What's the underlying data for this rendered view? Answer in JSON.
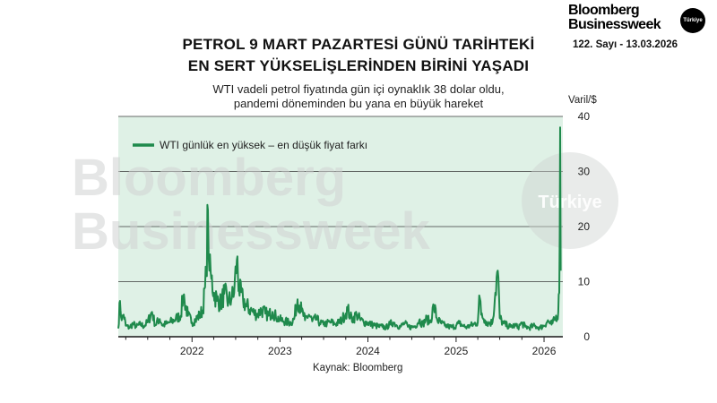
{
  "brand": {
    "line1": "Bloomberg",
    "line2": "Businessweek",
    "badge": "Türkiye",
    "issue": "122. Sayı - 13.03.2026"
  },
  "header": {
    "title_line1": "PETROL 9 MART PAZARTESİ GÜNÜ TARİHTEKİ",
    "title_line2": "EN SERT YÜKSELİŞLERİNDEN BİRİNİ YAŞADI",
    "subtitle_line1": "WTI vadeli petrol fiyatında gün içi oynaklık 38 dolar oldu,",
    "subtitle_line2": "pandemi döneminden bu yana en büyük hareket"
  },
  "watermark": {
    "line1": "Bloomberg",
    "line2": "Businessweek",
    "badge": "Türkiye"
  },
  "source": "Kaynak: Bloomberg",
  "colors": {
    "line": "#1f8a4c",
    "plot_bg": "#dff1e6",
    "grid": "#3a3a3a",
    "text": "#111111"
  },
  "chart_data": {
    "type": "line",
    "title": "PETROL 9 MART PAZARTESİ GÜNÜ TARİHTEKİ EN SERT YÜKSELİŞLERİNDEN BİRİNİ YAŞADI",
    "subtitle": "WTI vadeli petrol fiyatında gün içi oynaklık 38 dolar oldu, pandemi döneminden bu yana en büyük hareket",
    "ylabel": "Varil/$",
    "xlabel": "",
    "ylim": [
      0,
      40
    ],
    "xlim": [
      "2021-03-01",
      "2026-03-20"
    ],
    "yticks": [
      0,
      10,
      20,
      30,
      40
    ],
    "xticks": [
      {
        "label": "2022",
        "date": "2022-01-01"
      },
      {
        "label": "2023",
        "date": "2023-01-01"
      },
      {
        "label": "2024",
        "date": "2024-01-01"
      },
      {
        "label": "2025",
        "date": "2025-01-01"
      },
      {
        "label": "2026",
        "date": "2026-01-01"
      }
    ],
    "grid": true,
    "legend_position": "top-left",
    "series": [
      {
        "name": "WTI günlük en yüksek – en düşük fiyat farkı",
        "points": [
          [
            "2021-03-01",
            1.5
          ],
          [
            "2021-03-08",
            6.5
          ],
          [
            "2021-03-15",
            3.0
          ],
          [
            "2021-03-23",
            4.0
          ],
          [
            "2021-04-01",
            2.0
          ],
          [
            "2021-04-15",
            1.6
          ],
          [
            "2021-05-01",
            2.3
          ],
          [
            "2021-05-15",
            1.8
          ],
          [
            "2021-06-01",
            2.2
          ],
          [
            "2021-06-15",
            1.9
          ],
          [
            "2021-07-01",
            2.6
          ],
          [
            "2021-07-19",
            4.5
          ],
          [
            "2021-08-01",
            2.1
          ],
          [
            "2021-08-20",
            3.2
          ],
          [
            "2021-09-01",
            2.0
          ],
          [
            "2021-09-20",
            2.4
          ],
          [
            "2021-10-01",
            2.6
          ],
          [
            "2021-10-20",
            3.0
          ],
          [
            "2021-11-01",
            3.4
          ],
          [
            "2021-11-15",
            3.8
          ],
          [
            "2021-11-26",
            7.5
          ],
          [
            "2021-12-01",
            6.5
          ],
          [
            "2021-12-15",
            3.8
          ],
          [
            "2022-01-01",
            2.6
          ],
          [
            "2022-01-15",
            3.0
          ],
          [
            "2022-02-01",
            3.8
          ],
          [
            "2022-02-15",
            4.8
          ],
          [
            "2022-02-24",
            9.0
          ],
          [
            "2022-03-01",
            11.0
          ],
          [
            "2022-03-08",
            23.0
          ],
          [
            "2022-03-14",
            12.0
          ],
          [
            "2022-03-22",
            10.5
          ],
          [
            "2022-04-01",
            8.0
          ],
          [
            "2022-04-15",
            6.5
          ],
          [
            "2022-05-01",
            6.0
          ],
          [
            "2022-05-15",
            7.8
          ],
          [
            "2022-06-01",
            6.2
          ],
          [
            "2022-06-15",
            7.0
          ],
          [
            "2022-06-25",
            8.0
          ],
          [
            "2022-07-06",
            14.0
          ],
          [
            "2022-07-15",
            8.5
          ],
          [
            "2022-08-01",
            6.5
          ],
          [
            "2022-08-15",
            5.5
          ],
          [
            "2022-09-01",
            4.8
          ],
          [
            "2022-09-15",
            4.2
          ],
          [
            "2022-10-01",
            4.0
          ],
          [
            "2022-10-15",
            4.8
          ],
          [
            "2022-11-01",
            4.2
          ],
          [
            "2022-11-15",
            3.8
          ],
          [
            "2022-12-01",
            4.5
          ],
          [
            "2022-12-15",
            3.6
          ],
          [
            "2023-01-01",
            3.0
          ],
          [
            "2023-01-15",
            2.8
          ],
          [
            "2023-02-01",
            2.6
          ],
          [
            "2023-02-15",
            2.5
          ],
          [
            "2023-03-01",
            3.2
          ],
          [
            "2023-03-15",
            6.8
          ],
          [
            "2023-04-01",
            4.6
          ],
          [
            "2023-04-15",
            3.0
          ],
          [
            "2023-05-01",
            4.0
          ],
          [
            "2023-05-15",
            2.8
          ],
          [
            "2023-06-01",
            3.2
          ],
          [
            "2023-06-15",
            2.5
          ],
          [
            "2023-07-01",
            2.2
          ],
          [
            "2023-07-15",
            2.4
          ],
          [
            "2023-08-01",
            2.6
          ],
          [
            "2023-08-15",
            2.3
          ],
          [
            "2023-09-01",
            2.5
          ],
          [
            "2023-09-15",
            3.0
          ],
          [
            "2023-10-01",
            4.2
          ],
          [
            "2023-10-09",
            5.0
          ],
          [
            "2023-10-20",
            3.5
          ],
          [
            "2023-11-01",
            3.2
          ],
          [
            "2023-11-15",
            4.0
          ],
          [
            "2023-12-01",
            3.0
          ],
          [
            "2023-12-15",
            2.6
          ],
          [
            "2024-01-01",
            2.5
          ],
          [
            "2024-01-15",
            2.2
          ],
          [
            "2024-02-01",
            2.0
          ],
          [
            "2024-02-15",
            1.8
          ],
          [
            "2024-03-01",
            1.8
          ],
          [
            "2024-03-15",
            1.6
          ],
          [
            "2024-04-01",
            2.2
          ],
          [
            "2024-04-15",
            2.6
          ],
          [
            "2024-05-01",
            2.0
          ],
          [
            "2024-05-15",
            1.8
          ],
          [
            "2024-06-01",
            2.4
          ],
          [
            "2024-06-15",
            1.8
          ],
          [
            "2024-07-01",
            1.7
          ],
          [
            "2024-07-15",
            1.9
          ],
          [
            "2024-08-01",
            3.0
          ],
          [
            "2024-08-15",
            2.2
          ],
          [
            "2024-09-01",
            3.2
          ],
          [
            "2024-09-15",
            2.6
          ],
          [
            "2024-10-01",
            5.5
          ],
          [
            "2024-10-15",
            3.0
          ],
          [
            "2024-11-01",
            2.4
          ],
          [
            "2024-11-15",
            2.0
          ],
          [
            "2024-12-01",
            1.8
          ],
          [
            "2024-12-15",
            1.7
          ],
          [
            "2025-01-01",
            2.0
          ],
          [
            "2025-01-15",
            2.4
          ],
          [
            "2025-02-01",
            1.9
          ],
          [
            "2025-02-15",
            1.7
          ],
          [
            "2025-03-01",
            2.0
          ],
          [
            "2025-03-15",
            2.2
          ],
          [
            "2025-04-01",
            2.6
          ],
          [
            "2025-04-07",
            7.5
          ],
          [
            "2025-04-15",
            4.0
          ],
          [
            "2025-05-01",
            3.0
          ],
          [
            "2025-05-15",
            2.4
          ],
          [
            "2025-06-01",
            2.6
          ],
          [
            "2025-06-13",
            8.0
          ],
          [
            "2025-06-23",
            12.0
          ],
          [
            "2025-07-01",
            3.4
          ],
          [
            "2025-07-15",
            2.4
          ],
          [
            "2025-08-01",
            2.0
          ],
          [
            "2025-08-15",
            1.8
          ],
          [
            "2025-09-01",
            2.0
          ],
          [
            "2025-09-15",
            1.7
          ],
          [
            "2025-10-01",
            2.4
          ],
          [
            "2025-10-15",
            1.8
          ],
          [
            "2025-11-01",
            1.6
          ],
          [
            "2025-11-15",
            1.9
          ],
          [
            "2025-12-01",
            1.8
          ],
          [
            "2025-12-15",
            1.6
          ],
          [
            "2026-01-01",
            2.0
          ],
          [
            "2026-01-15",
            2.8
          ],
          [
            "2026-02-01",
            2.2
          ],
          [
            "2026-02-15",
            3.0
          ],
          [
            "2026-03-01",
            4.5
          ],
          [
            "2026-03-05",
            8.0
          ],
          [
            "2026-03-09",
            38.0
          ],
          [
            "2026-03-11",
            12.0
          ]
        ]
      }
    ]
  }
}
